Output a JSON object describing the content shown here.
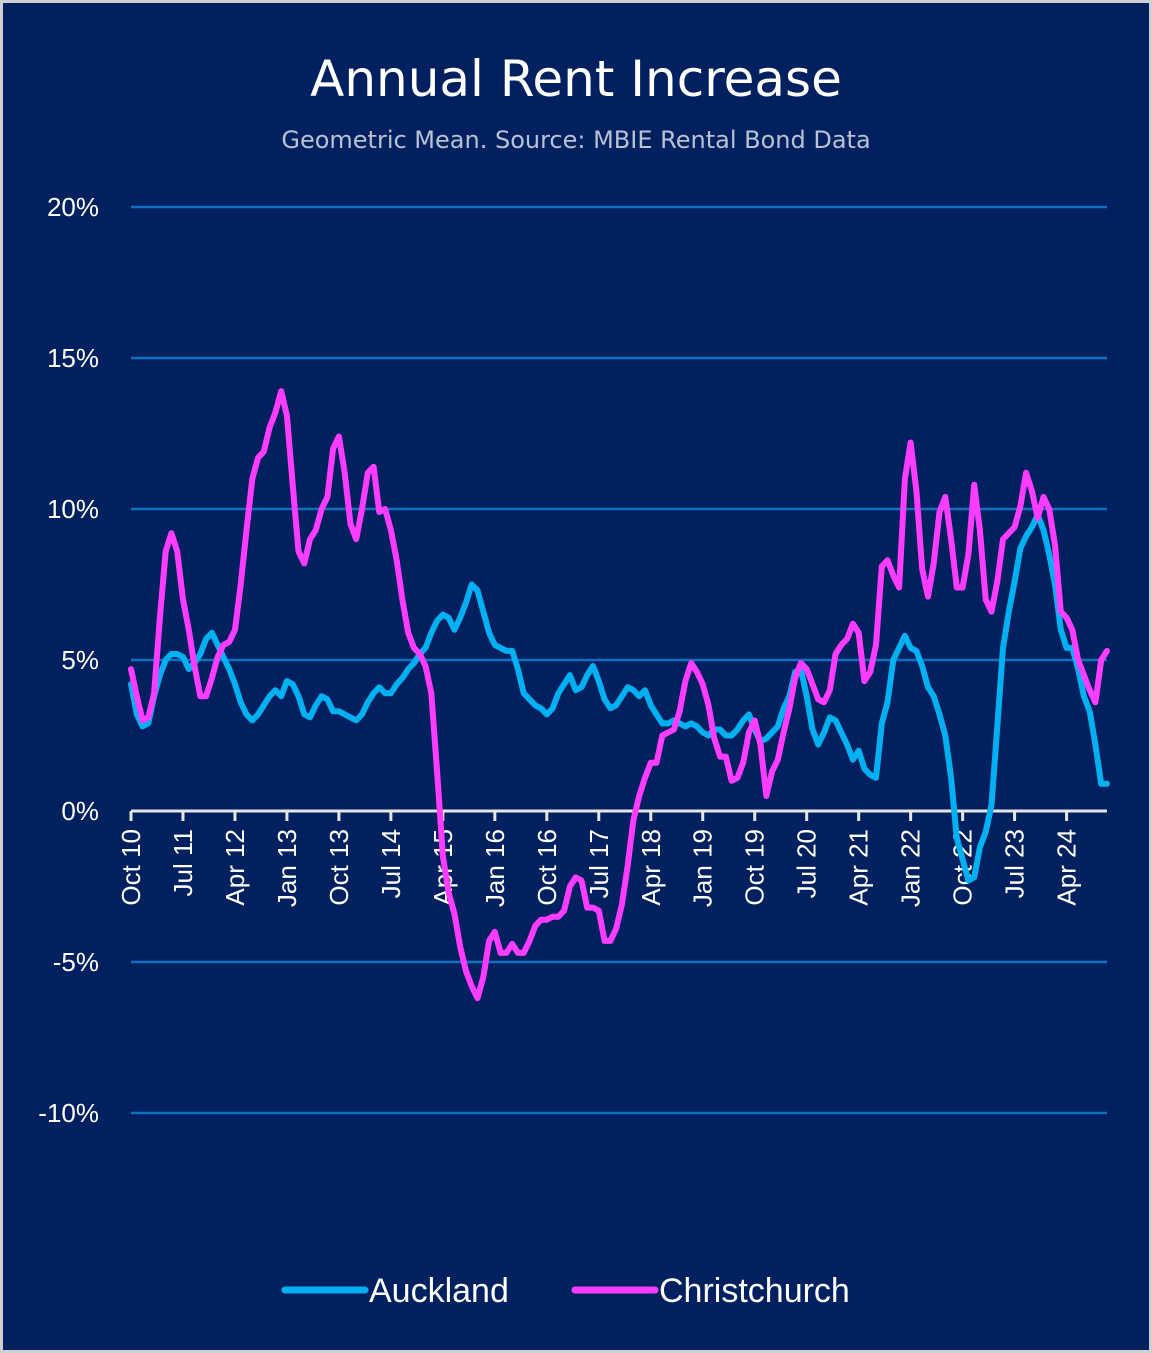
{
  "chart_data": {
    "type": "line",
    "title": "Annual Rent Increase",
    "subtitle": "Geometric Mean. Source: MBIE Rental Bond Data",
    "xlabel": "",
    "ylabel": "",
    "x_unit": "months since Oct 2010 (monthly)",
    "ylim": [
      -10,
      20
    ],
    "yticks": [
      20,
      15,
      10,
      5,
      0,
      -5,
      -10
    ],
    "ytick_labels": [
      "20%",
      "15%",
      "10%",
      "5%",
      "0%",
      "-5%",
      "-10%"
    ],
    "xticks_months": [
      0,
      9,
      18,
      27,
      36,
      45,
      54,
      63,
      72,
      81,
      90,
      99,
      108,
      117,
      126,
      135,
      144,
      153,
      162
    ],
    "xtick_labels": [
      "Oct 10",
      "Jul 11",
      "Apr 12",
      "Jan 13",
      "Oct 13",
      "Jul 14",
      "Apr 15",
      "Jan 16",
      "Oct 16",
      "Jul 17",
      "Apr 18",
      "Jan 19",
      "Oct 19",
      "Jul 20",
      "Apr 21",
      "Jan 22",
      "Oct 22",
      "Jul 23",
      "Apr 24"
    ],
    "xlim_months": [
      0,
      169
    ],
    "grid": "horizontal",
    "legend_position": "bottom",
    "series": [
      {
        "name": "Auckland",
        "color": "#00b0f0",
        "values": [
          4.2,
          3.2,
          2.8,
          2.9,
          3.8,
          4.5,
          5.0,
          5.2,
          5.2,
          5.1,
          4.7,
          4.9,
          5.2,
          5.7,
          5.9,
          5.5,
          5.1,
          4.7,
          4.2,
          3.6,
          3.2,
          3.0,
          3.2,
          3.5,
          3.8,
          4.0,
          3.8,
          4.3,
          4.2,
          3.8,
          3.2,
          3.1,
          3.5,
          3.8,
          3.7,
          3.3,
          3.3,
          3.2,
          3.1,
          3.0,
          3.2,
          3.6,
          3.9,
          4.1,
          3.9,
          3.9,
          4.2,
          4.4,
          4.7,
          4.9,
          5.2,
          5.4,
          5.9,
          6.3,
          6.5,
          6.4,
          6.0,
          6.4,
          6.9,
          7.5,
          7.3,
          6.6,
          5.9,
          5.5,
          5.4,
          5.3,
          5.3,
          4.7,
          3.9,
          3.7,
          3.5,
          3.4,
          3.2,
          3.4,
          3.9,
          4.2,
          4.5,
          4.0,
          4.1,
          4.5,
          4.8,
          4.3,
          3.7,
          3.4,
          3.5,
          3.8,
          4.1,
          4.0,
          3.8,
          4.0,
          3.5,
          3.2,
          2.9,
          2.9,
          3.0,
          2.9,
          2.8,
          2.9,
          2.8,
          2.6,
          2.5,
          2.7,
          2.7,
          2.5,
          2.5,
          2.7,
          3.0,
          3.2,
          2.7,
          2.3,
          2.4,
          2.6,
          2.8,
          3.4,
          3.8,
          4.6,
          4.7,
          3.8,
          2.7,
          2.2,
          2.6,
          3.1,
          3.0,
          2.6,
          2.2,
          1.7,
          2.0,
          1.4,
          1.2,
          1.1,
          2.9,
          3.6,
          5.0,
          5.4,
          5.8,
          5.4,
          5.3,
          4.8,
          4.1,
          3.8,
          3.2,
          2.5,
          1.1,
          -0.9,
          -1.6,
          -2.3,
          -2.2,
          -1.2,
          -0.7,
          0.2,
          2.8,
          5.4,
          6.6,
          7.6,
          8.7,
          9.1,
          9.4,
          9.8,
          9.3,
          8.5,
          7.5,
          6.0,
          5.4,
          5.4,
          4.7,
          3.8,
          3.3,
          2.2,
          0.9,
          0.9
        ]
      },
      {
        "name": "Christchurch",
        "color": "#ff3cff",
        "values": [
          4.7,
          3.8,
          3.0,
          3.1,
          3.9,
          6.4,
          8.6,
          9.2,
          8.6,
          7.0,
          6.0,
          4.8,
          3.8,
          3.8,
          4.4,
          5.1,
          5.5,
          5.6,
          6.0,
          7.5,
          9.3,
          11.0,
          11.7,
          11.9,
          12.7,
          13.2,
          13.9,
          13.1,
          10.8,
          8.6,
          8.2,
          9.0,
          9.3,
          10.0,
          10.4,
          12.0,
          12.4,
          11.2,
          9.5,
          9.0,
          10.0,
          11.2,
          11.4,
          9.9,
          10.0,
          9.3,
          8.3,
          7.0,
          5.9,
          5.4,
          5.2,
          4.8,
          3.9,
          1.3,
          -1.5,
          -2.7,
          -3.4,
          -4.5,
          -5.3,
          -5.8,
          -6.2,
          -5.5,
          -4.3,
          -4.0,
          -4.7,
          -4.7,
          -4.4,
          -4.7,
          -4.7,
          -4.3,
          -3.8,
          -3.6,
          -3.6,
          -3.5,
          -3.5,
          -3.3,
          -2.5,
          -2.2,
          -2.3,
          -3.2,
          -3.2,
          -3.3,
          -4.3,
          -4.3,
          -3.9,
          -3.1,
          -1.8,
          -0.3,
          0.5,
          1.1,
          1.6,
          1.6,
          2.5,
          2.6,
          2.7,
          3.3,
          4.3,
          4.9,
          4.6,
          4.2,
          3.5,
          2.4,
          1.8,
          1.8,
          1.0,
          1.1,
          1.6,
          2.6,
          3.0,
          2.2,
          0.5,
          1.3,
          1.7,
          2.6,
          3.4,
          4.4,
          4.9,
          4.7,
          4.2,
          3.7,
          3.6,
          4.0,
          5.2,
          5.5,
          5.7,
          6.2,
          5.9,
          4.3,
          4.6,
          5.5,
          8.1,
          8.3,
          7.8,
          7.4,
          11.0,
          12.2,
          10.6,
          8.0,
          7.1,
          8.2,
          9.9,
          10.4,
          9.0,
          7.4,
          7.4,
          8.5,
          10.8,
          9.3,
          7.0,
          6.6,
          7.6,
          9.0,
          9.2,
          9.4,
          10.1,
          11.2,
          10.6,
          9.7,
          10.4,
          10.0,
          8.8,
          6.6,
          6.4,
          6.0,
          5.0,
          4.5,
          4.0,
          3.6,
          5.0,
          5.3
        ]
      }
    ]
  }
}
